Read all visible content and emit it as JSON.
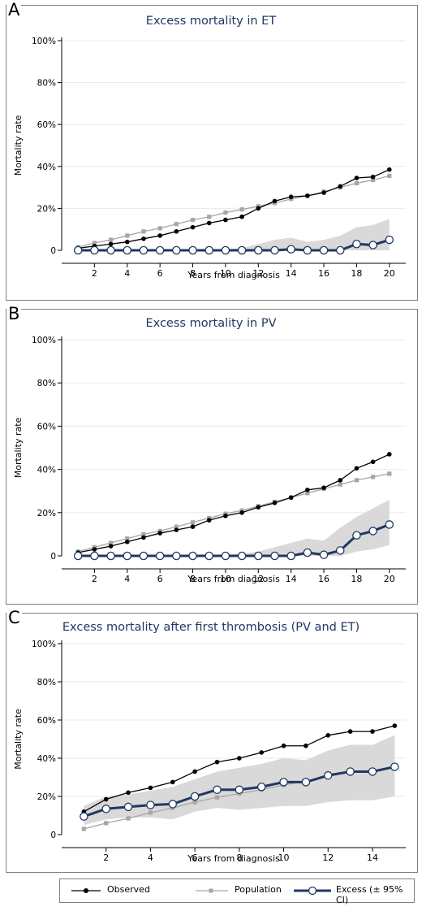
{
  "colors": {
    "observed": "#000000",
    "population": "#a6a6a6",
    "excess": "#1f3864",
    "ci_band": "#d9d9d9",
    "title": "#1f3864",
    "grid": "#eaeaea"
  },
  "legend": {
    "observed": "Observed",
    "population": "Population",
    "excess": "Excess (± 95% CI)"
  },
  "chart_data": [
    {
      "panel": "A",
      "type": "line",
      "title": "Excess mortality in ET",
      "xlabel": "Years from diagnosis",
      "ylabel": "Mortality rate",
      "xlim": [
        0,
        21
      ],
      "ylim": [
        0,
        100
      ],
      "xticks": [
        2,
        4,
        6,
        8,
        10,
        12,
        14,
        16,
        18,
        20
      ],
      "yticks": [
        0,
        20,
        40,
        60,
        80,
        100
      ],
      "ytick_labels": [
        "0",
        "20%",
        "40%",
        "60%",
        "80%",
        "100%"
      ],
      "x": [
        1,
        2,
        3,
        4,
        5,
        6,
        7,
        8,
        9,
        10,
        11,
        12,
        13,
        14,
        15,
        16,
        17,
        18,
        19,
        20
      ],
      "series": [
        {
          "name": "Observed",
          "values": [
            1,
            2,
            3,
            4,
            5.5,
            7,
            9,
            11,
            13,
            14.5,
            16,
            20,
            23.5,
            25.5,
            26,
            27.5,
            30.5,
            34.5,
            35,
            38.5
          ]
        },
        {
          "name": "Population",
          "values": [
            1.5,
            3.5,
            5,
            7,
            9,
            10.5,
            12.5,
            14.5,
            16,
            18,
            19.5,
            21,
            22.5,
            24.5,
            26,
            28,
            30,
            32,
            33.5,
            35.5
          ]
        },
        {
          "name": "Excess (± 95% CI)",
          "values": [
            0,
            0,
            0,
            0,
            0,
            0,
            0,
            0,
            0,
            0,
            0,
            0,
            0,
            0.5,
            0,
            0,
            0,
            3,
            2.5,
            5
          ]
        }
      ],
      "ci_upper": [
        0.5,
        0.5,
        0.5,
        0.5,
        0.5,
        0.5,
        0.5,
        0.5,
        0.5,
        0.5,
        1,
        3,
        5,
        6,
        4,
        5,
        7,
        11,
        12,
        15
      ],
      "ci_lower": [
        0,
        0,
        0,
        0,
        0,
        0,
        0,
        0,
        0,
        0,
        0,
        0,
        0,
        0,
        0,
        0,
        0,
        0,
        0,
        0
      ]
    },
    {
      "panel": "B",
      "type": "line",
      "title": "Excess mortality in PV",
      "xlabel": "Years from diagnosis",
      "ylabel": "Mortality rate",
      "xlim": [
        0,
        21
      ],
      "ylim": [
        0,
        100
      ],
      "xticks": [
        2,
        4,
        6,
        8,
        10,
        12,
        14,
        16,
        18,
        20
      ],
      "yticks": [
        0,
        20,
        40,
        60,
        80,
        100
      ],
      "ytick_labels": [
        "0",
        "20%",
        "40%",
        "60%",
        "80%",
        "100%"
      ],
      "x": [
        1,
        2,
        3,
        4,
        5,
        6,
        7,
        8,
        9,
        10,
        11,
        12,
        13,
        14,
        15,
        16,
        17,
        18,
        19,
        20
      ],
      "series": [
        {
          "name": "Observed",
          "values": [
            1.5,
            3,
            4.5,
            6.5,
            8.5,
            10.5,
            12,
            13.5,
            16.5,
            18.5,
            20,
            22.5,
            24.5,
            27,
            30.5,
            31.5,
            35,
            40.5,
            43.5,
            47
          ]
        },
        {
          "name": "Population",
          "values": [
            2,
            4,
            6,
            8,
            10,
            11.5,
            13.5,
            15.5,
            17.5,
            19.5,
            21,
            23,
            25,
            27,
            29,
            31,
            33,
            35,
            36.5,
            38
          ]
        },
        {
          "name": "Excess (± 95% CI)",
          "values": [
            0,
            0,
            0,
            0,
            0,
            0,
            0,
            0,
            0,
            0,
            0,
            0,
            0,
            0,
            1.5,
            0.5,
            2.5,
            9.5,
            11.5,
            14.5
          ]
        }
      ],
      "ci_upper": [
        0.5,
        0.5,
        0.5,
        0.5,
        0.5,
        0.5,
        0.5,
        0.5,
        0.5,
        0.5,
        1,
        2,
        4,
        6,
        8,
        7,
        13,
        18,
        22,
        26
      ],
      "ci_lower": [
        0,
        0,
        0,
        0,
        0,
        0,
        0,
        0,
        0,
        0,
        0,
        0,
        0,
        0,
        0,
        0,
        0,
        2,
        3,
        5
      ]
    },
    {
      "panel": "C",
      "type": "line",
      "title": "Excess mortality after first thrombosis (PV and ET)",
      "xlabel": "Years from diagnosis",
      "ylabel": "Mortality rate",
      "xlim": [
        0,
        15.5
      ],
      "ylim": [
        0,
        100
      ],
      "xticks": [
        2,
        4,
        6,
        8,
        10,
        12,
        14
      ],
      "yticks": [
        0,
        20,
        40,
        60,
        80,
        100
      ],
      "ytick_labels": [
        "0",
        "20%",
        "40%",
        "60%",
        "80%",
        "100%"
      ],
      "x": [
        1,
        2,
        3,
        4,
        5,
        6,
        7,
        8,
        9,
        10,
        11,
        12,
        13,
        14,
        15
      ],
      "series": [
        {
          "name": "Observed",
          "values": [
            12,
            18.5,
            22,
            24.5,
            27.5,
            33,
            38,
            40,
            43,
            46.5,
            46.5,
            52,
            54,
            54,
            57
          ]
        },
        {
          "name": "Population",
          "values": [
            3,
            6,
            8.5,
            11.5,
            14,
            17,
            19.5,
            21.5,
            23.5,
            26,
            28,
            30.5,
            32.5,
            33.5,
            35.5
          ]
        },
        {
          "name": "Excess (± 95% CI)",
          "values": [
            9.5,
            13.5,
            14.5,
            15.5,
            16,
            20,
            23.5,
            23.5,
            25,
            27.5,
            27.5,
            31,
            33,
            33,
            35.5
          ]
        }
      ],
      "ci_upper": [
        15,
        20,
        21,
        23,
        25,
        29,
        33,
        35,
        37,
        40,
        39,
        44,
        47,
        47,
        52
      ],
      "ci_lower": [
        5,
        8,
        9,
        9,
        8,
        12,
        14,
        13,
        14,
        15,
        15,
        17,
        18,
        18,
        20
      ]
    }
  ]
}
